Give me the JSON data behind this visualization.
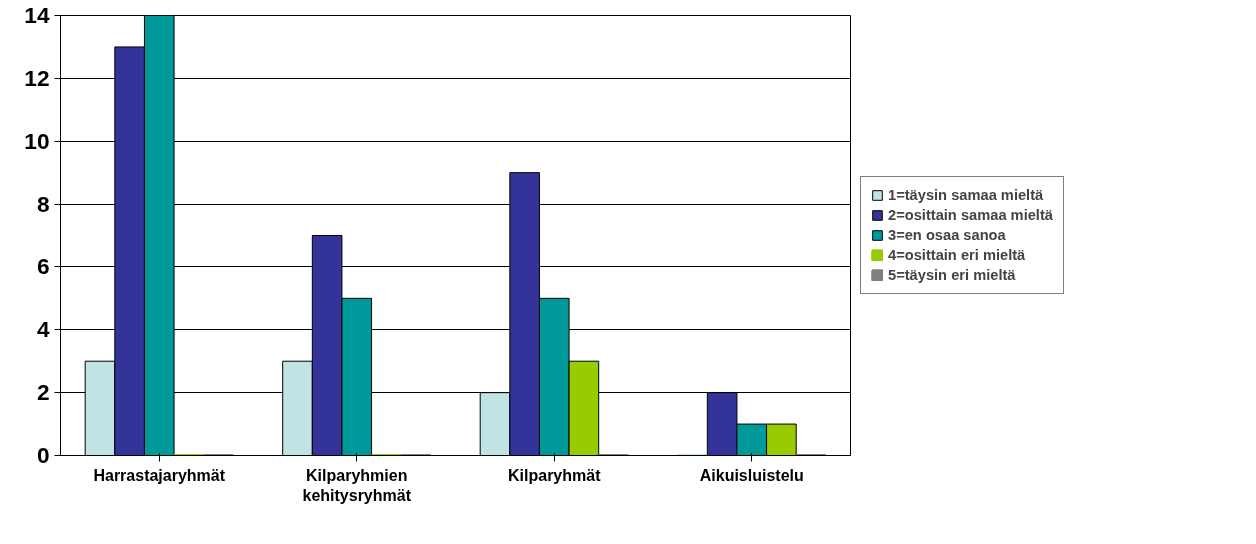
{
  "chart_data": {
    "type": "bar",
    "categories": [
      "Harrastajaryhmät",
      "Kilparyhmien\nkehitysryhmät",
      "Kilparyhmät",
      "Aikuisluistelu"
    ],
    "series": [
      {
        "name": "1=täysin samaa mieltä",
        "color": "#c0e4e4",
        "values": [
          3,
          3,
          2,
          0
        ]
      },
      {
        "name": "2=osittain samaa mieltä",
        "color": "#333399",
        "values": [
          13,
          7,
          9,
          2
        ]
      },
      {
        "name": "3=en osaa sanoa",
        "color": "#009999",
        "values": [
          14,
          5,
          5,
          1
        ]
      },
      {
        "name": "4=osittain eri mieltä",
        "color": "#99cc00",
        "values": [
          0,
          0,
          3,
          1
        ]
      },
      {
        "name": "5=täysin eri mieltä",
        "color": "#808080",
        "values": [
          0,
          0,
          0,
          0
        ]
      }
    ],
    "ylim": [
      0,
      14
    ],
    "yticks": [
      0,
      2,
      4,
      6,
      8,
      10,
      12,
      14
    ],
    "grid": "y",
    "legend": "right"
  }
}
